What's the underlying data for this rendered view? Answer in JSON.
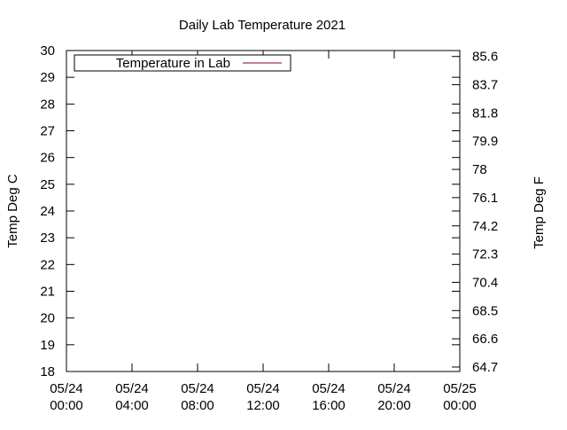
{
  "chart_data": {
    "type": "line",
    "title": "Daily Lab Temperature 2021",
    "ylabel": "Temp Deg C",
    "y2label": "Temp Deg F",
    "xlabel": "",
    "x_ticks": [
      {
        "line1": "05/24",
        "line2": "00:00",
        "hours": 0
      },
      {
        "line1": "05/24",
        "line2": "04:00",
        "hours": 4
      },
      {
        "line1": "05/24",
        "line2": "08:00",
        "hours": 8
      },
      {
        "line1": "05/24",
        "line2": "12:00",
        "hours": 12
      },
      {
        "line1": "05/24",
        "line2": "16:00",
        "hours": 16
      },
      {
        "line1": "05/24",
        "line2": "20:00",
        "hours": 20
      },
      {
        "line1": "05/25",
        "line2": "00:00",
        "hours": 24
      }
    ],
    "xlim": [
      "05/24 00:00",
      "05/25 00:00"
    ],
    "ylim": [
      18,
      30
    ],
    "y_ticks": [
      18,
      19,
      20,
      21,
      22,
      23,
      24,
      25,
      26,
      27,
      28,
      29,
      30
    ],
    "y2_ticks": [
      "64.7",
      "66.6",
      "68.5",
      "70.4",
      "72.3",
      "74.2",
      "76.1",
      "78",
      "79.9",
      "81.8",
      "83.7",
      "85.6"
    ],
    "series": [
      {
        "name": "Temperature in Lab",
        "color": "#800040",
        "points": []
      }
    ],
    "legend_position": "top-left",
    "grid": false
  }
}
